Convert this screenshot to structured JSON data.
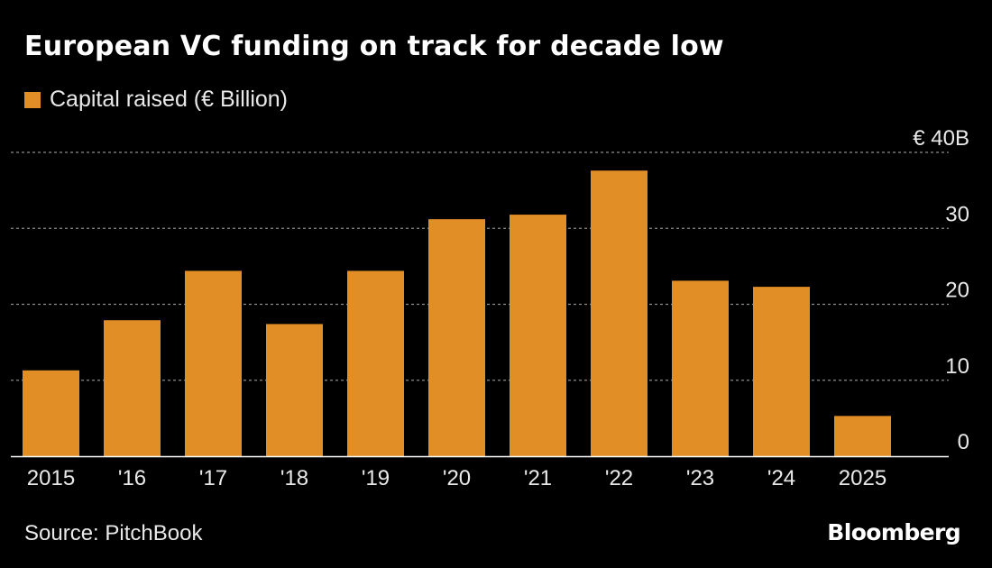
{
  "title": "European VC funding on track for decade low",
  "legend": {
    "label": "Capital raised (€ Billion)"
  },
  "source": "Source: PitchBook",
  "brand": "Bloomberg",
  "colors": {
    "background": "#000000",
    "bar": "#e18e26",
    "text": "#e9e9e9",
    "grid": "#8c8c8c"
  },
  "chart_data": {
    "type": "bar",
    "title": "European VC funding on track for decade low",
    "series": [
      {
        "name": "Capital raised (€ Billion)",
        "values": [
          11.3,
          17.9,
          24.4,
          17.4,
          24.4,
          31.2,
          31.8,
          37.6,
          23.1,
          22.3,
          5.3
        ]
      }
    ],
    "categories": [
      "2015",
      "'16",
      "'17",
      "'18",
      "'19",
      "'20",
      "'21",
      "'22",
      "'23",
      "'24",
      "2025"
    ],
    "xlabel": "",
    "ylabel": "",
    "ylim": [
      0,
      40
    ],
    "yticks": [
      0,
      10,
      20,
      30,
      40
    ],
    "ytick_labels": [
      "0",
      "10",
      "20",
      "30",
      "€ 40B"
    ],
    "y_axis_side": "right",
    "grid": true,
    "legend_position": "top-left"
  }
}
